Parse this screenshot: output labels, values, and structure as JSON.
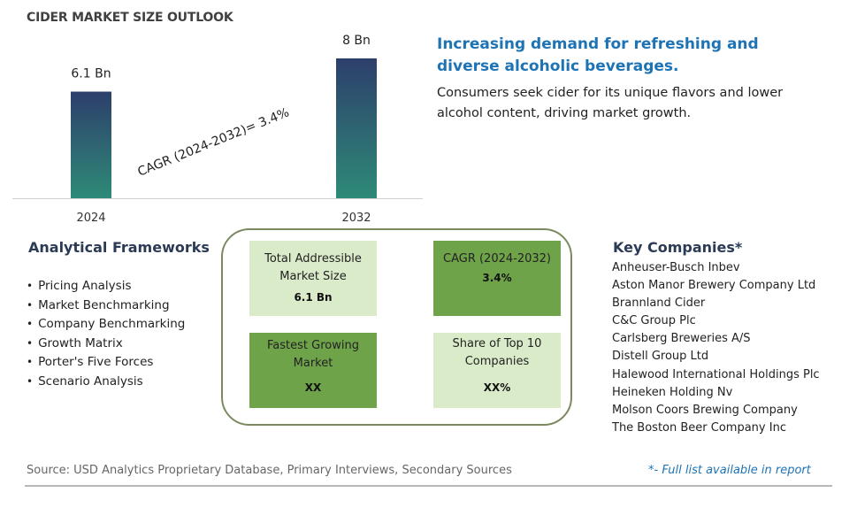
{
  "page_title": "CIDER MARKET SIZE OUTLOOK",
  "chart_data": {
    "type": "bar",
    "categories": [
      "2024",
      "2032"
    ],
    "values": [
      6.1,
      8
    ],
    "value_labels": [
      "6.1 Bn",
      "8 Bn"
    ],
    "ylim": [
      0,
      8
    ],
    "annotation": "CAGR (2024-2032)=  3.4%",
    "colors": {
      "bar_top": "#2d3f6b",
      "bar_bottom": "#2e8a78",
      "axis": "#cfcfcf"
    }
  },
  "headline": "Increasing demand for refreshing and diverse alcoholic beverages.",
  "description": "Consumers seek cider for its unique flavors and lower alcohol content, driving market growth.",
  "frameworks": {
    "title": "Analytical Frameworks",
    "items": [
      "Pricing Analysis",
      "Market Benchmarking",
      "Company Benchmarking",
      "Growth Matrix",
      "Porter's Five Forces",
      "Scenario Analysis"
    ]
  },
  "metrics": [
    {
      "label": "Total Addressible Market Size",
      "value": "6.1 Bn",
      "tone": "light"
    },
    {
      "label": "CAGR (2024-2032)",
      "value": "3.4%",
      "tone": "dark"
    },
    {
      "label": "Fastest Growing Market",
      "value": "XX",
      "tone": "dark"
    },
    {
      "label": "Share of Top 10 Companies",
      "value": "XX%",
      "tone": "light"
    }
  ],
  "key_companies": {
    "title": "Key Companies*",
    "items": [
      "Anheuser-Busch Inbev",
      "Aston Manor Brewery Company Ltd",
      "Brannland Cider",
      "C&C Group Plc",
      "Carlsberg Breweries A/S",
      "Distell Group Ltd",
      "Halewood International Holdings Plc",
      "Heineken Holding Nv",
      "Molson Coors Brewing Company",
      "The Boston Beer Company Inc"
    ]
  },
  "source_note": "Source: USD Analytics Proprietary Database, Primary Interviews, Secondary Sources",
  "footnote": "*- Full list available in report"
}
